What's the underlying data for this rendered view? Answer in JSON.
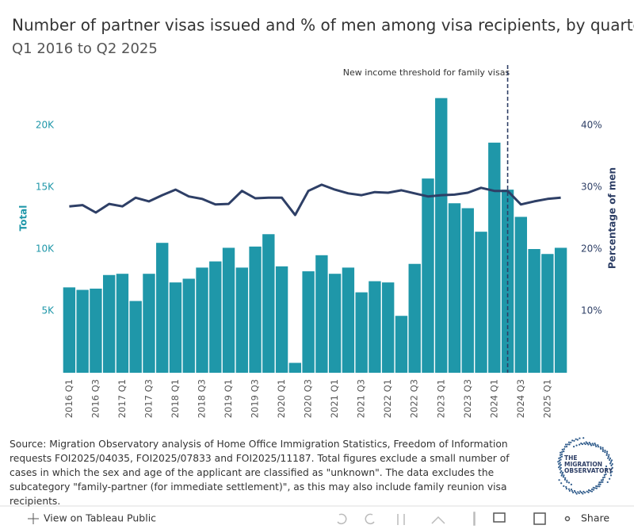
{
  "chart_data": {
    "type": "bar",
    "title": "Number of partner visas issued and % of men among visa recipients, by quarter",
    "subtitle": "Q1 2016 to Q2 2025",
    "annotation": "New income threshold for family visas",
    "categories": [
      "2016 Q1",
      null,
      "2016 Q3",
      null,
      "2017 Q1",
      null,
      "2017 Q3",
      null,
      "2018 Q1",
      null,
      "2018 Q3",
      null,
      "2019 Q1",
      null,
      "2019 Q3",
      null,
      "2020 Q1",
      null,
      "2020 Q3",
      null,
      "2021 Q1",
      null,
      "2021 Q3",
      null,
      "2022 Q1",
      null,
      "2022 Q3",
      null,
      "2023 Q1",
      null,
      "2023 Q3",
      null,
      "2024 Q1",
      null,
      "2024 Q3",
      null,
      "2025 Q1",
      null
    ],
    "series": [
      {
        "name": "Total",
        "color": "#1f97a9",
        "values": [
          6900,
          6700,
          6800,
          7900,
          8000,
          5800,
          8000,
          10500,
          7300,
          7600,
          8500,
          9000,
          10100,
          8500,
          10200,
          11200,
          8600,
          800,
          8200,
          9500,
          8000,
          8500,
          6500,
          7400,
          7300,
          4600,
          8800,
          15700,
          22200,
          13700,
          13300,
          11400,
          18600,
          14800,
          12600,
          10000,
          9600,
          10100
        ]
      },
      {
        "name": "Percentage of men",
        "color": "#2e3f66",
        "axis": "y2",
        "values": [
          26.9,
          27.1,
          25.9,
          27.3,
          26.9,
          28.3,
          27.7,
          28.7,
          29.6,
          28.5,
          28.1,
          27.2,
          27.3,
          29.4,
          28.2,
          28.3,
          28.3,
          25.5,
          29.4,
          30.4,
          29.6,
          29.0,
          28.7,
          29.2,
          29.1,
          29.5,
          29.0,
          28.5,
          28.7,
          28.8,
          29.1,
          29.9,
          29.4,
          29.4,
          27.2,
          27.7,
          28.1,
          28.3
        ]
      }
    ],
    "ylim": [
      0,
      25000
    ],
    "yticks": [
      {
        "value": 5000,
        "label": "5K"
      },
      {
        "value": 10000,
        "label": "10K"
      },
      {
        "value": 15000,
        "label": "15K"
      },
      {
        "value": 20000,
        "label": "20K"
      }
    ],
    "y2lim": [
      0,
      50
    ],
    "y2ticks": [
      {
        "value": 10,
        "label": "10%"
      },
      {
        "value": 20,
        "label": "20%"
      },
      {
        "value": 30,
        "label": "30%"
      },
      {
        "value": 40,
        "label": "40%"
      }
    ],
    "grid": false
  },
  "source": "Source: Migration Observatory analysis of Home Office Immigration Statistics, Freedom of Information requests FOI2025/04035, FOI2025/07833 and FOI2025/11187. Total figures exclude a small number of cases in which the sex and age of the applicant are classified as \"unknown\". The data excludes the subcategory \"family-partner (for immediate settlement)\", as this may also include family reunion visa recipients.",
  "logo": [
    "THE",
    "MIGRATION",
    "OBSERVATORY"
  ],
  "footer": {
    "view": "View on Tableau Public",
    "share": "Share"
  }
}
